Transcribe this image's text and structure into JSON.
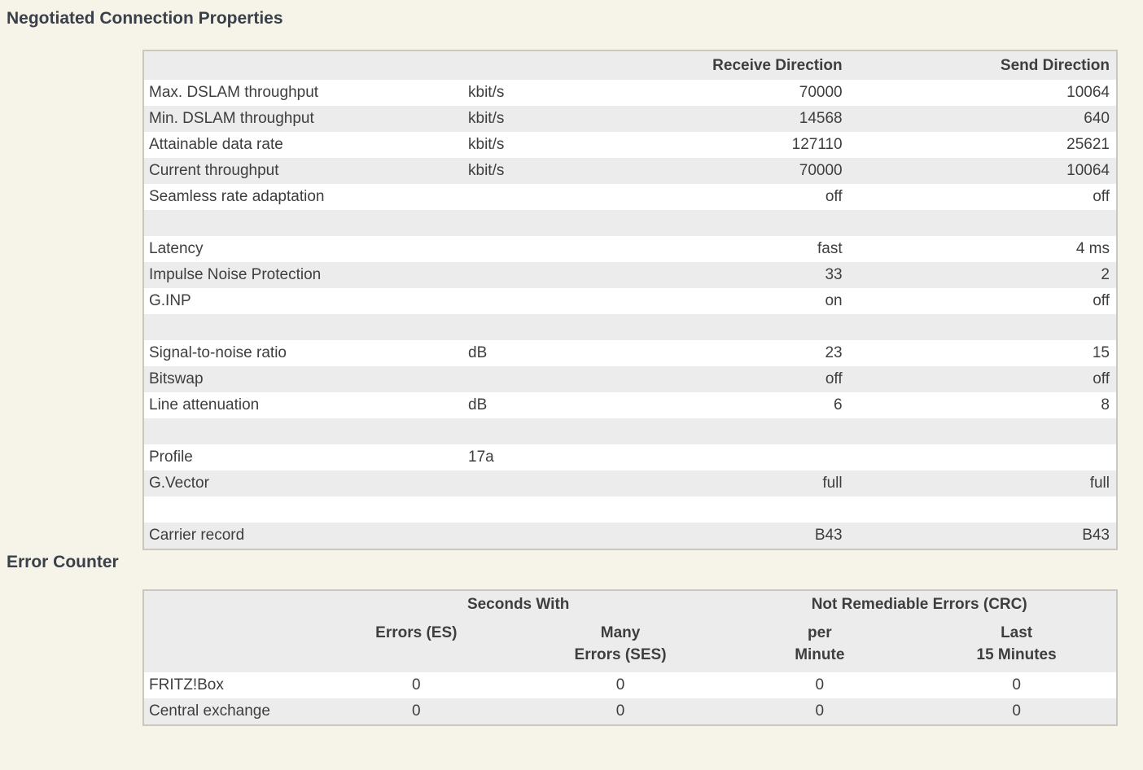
{
  "page": {
    "background": "#f6f3e9",
    "table_header_color": "#ececec",
    "row_alt_color": "#ececec",
    "row_color": "#ffffff",
    "border_color": "#c9c8bf",
    "text_color": "#3e3e3e",
    "title_color": "#39404a"
  },
  "connection_properties": {
    "title": "Negotiated Connection Properties",
    "columns": {
      "receive": "Receive Direction",
      "send": "Send Direction"
    },
    "rows": [
      {
        "label": "Max. DSLAM throughput",
        "unit": "kbit/s",
        "receive": "70000",
        "send": "10064"
      },
      {
        "label": "Min. DSLAM throughput",
        "unit": "kbit/s",
        "receive": "14568",
        "send": "640"
      },
      {
        "label": "Attainable data rate",
        "unit": "kbit/s",
        "receive": "127110",
        "send": "25621"
      },
      {
        "label": "Current throughput",
        "unit": "kbit/s",
        "receive": "70000",
        "send": "10064"
      },
      {
        "label": "Seamless rate adaptation",
        "unit": "",
        "receive": "off",
        "send": "off"
      },
      {
        "spacer": true,
        "label": "",
        "unit": "",
        "receive": "",
        "send": ""
      },
      {
        "label": "Latency",
        "unit": "",
        "receive": "fast",
        "send": "4 ms"
      },
      {
        "label": "Impulse Noise Protection",
        "unit": "",
        "receive": "33",
        "send": "2"
      },
      {
        "label": "G.INP",
        "unit": "",
        "receive": "on",
        "send": "off"
      },
      {
        "spacer": true,
        "label": "",
        "unit": "",
        "receive": "",
        "send": ""
      },
      {
        "label": "Signal-to-noise ratio",
        "unit": "dB",
        "receive": "23",
        "send": "15"
      },
      {
        "label": "Bitswap",
        "unit": "",
        "receive": "off",
        "send": "off"
      },
      {
        "label": "Line attenuation",
        "unit": "dB",
        "receive": "6",
        "send": "8"
      },
      {
        "spacer": true,
        "label": "",
        "unit": "",
        "receive": "",
        "send": ""
      },
      {
        "label": "Profile",
        "unit": "17a",
        "receive": "",
        "send": ""
      },
      {
        "label": "G.Vector",
        "unit": "",
        "receive": "full",
        "send": "full"
      },
      {
        "spacer": true,
        "label": "",
        "unit": "",
        "receive": "",
        "send": ""
      },
      {
        "label": "Carrier record",
        "unit": "",
        "receive": "B43",
        "send": "B43"
      }
    ]
  },
  "error_counter": {
    "title": "Error Counter",
    "group_headers": [
      "Seconds With",
      "Not Remediable Errors (CRC)"
    ],
    "sub_headers": [
      [
        "Errors (ES)"
      ],
      [
        "Many",
        "Errors (SES)"
      ],
      [
        "per",
        "Minute"
      ],
      [
        "Last",
        "15 Minutes"
      ]
    ],
    "rows": [
      {
        "label": "FRITZ!Box",
        "values": [
          "0",
          "0",
          "0",
          "0"
        ]
      },
      {
        "label": "Central exchange",
        "values": [
          "0",
          "0",
          "0",
          "0"
        ]
      }
    ]
  }
}
